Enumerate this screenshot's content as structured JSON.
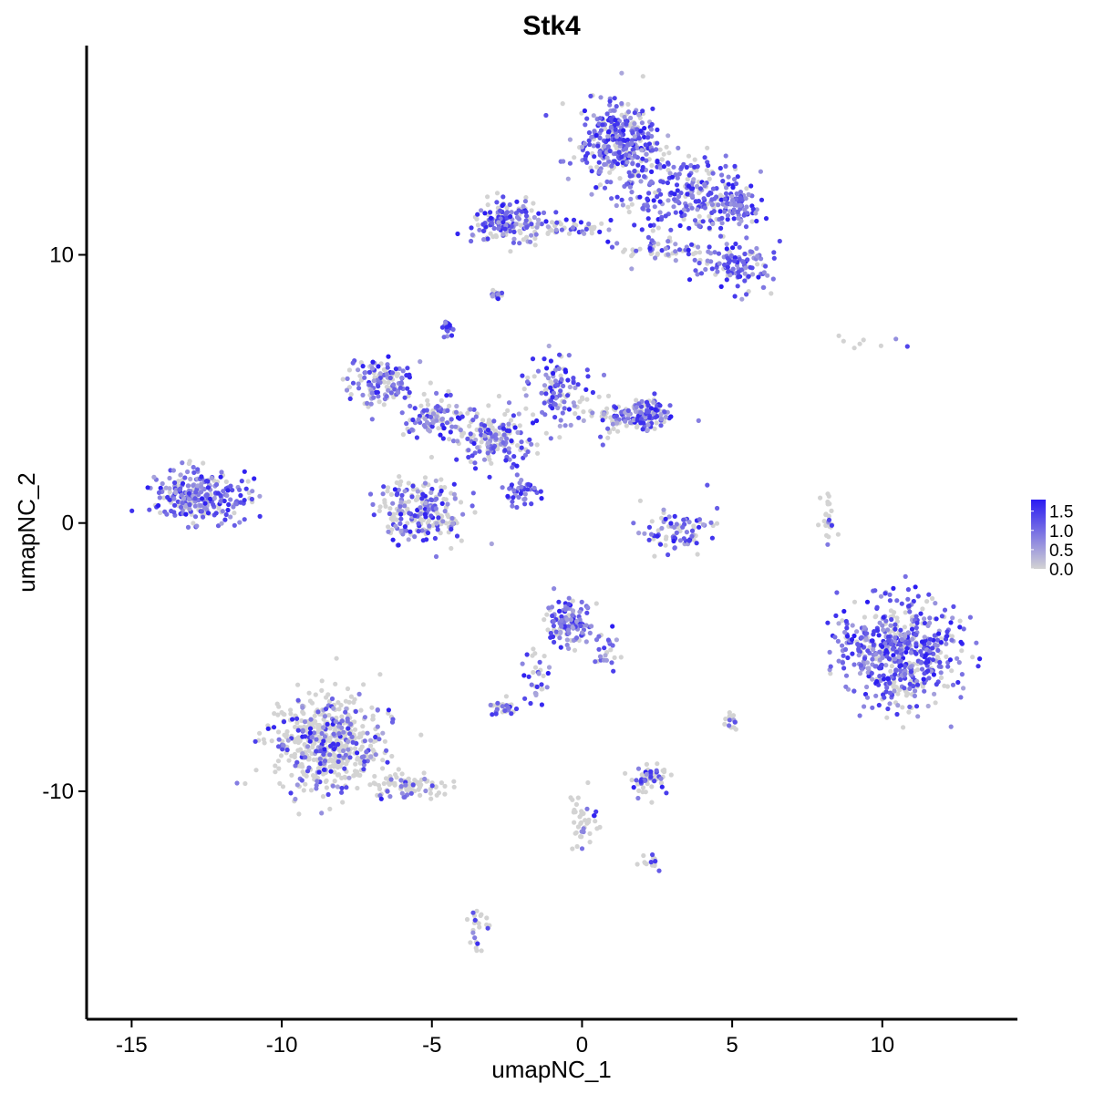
{
  "chart_data": {
    "type": "scatter",
    "title": "Stk4",
    "xlabel": "umapNC_1",
    "ylabel": "umapNC_2",
    "xlim": [
      -16.5,
      14.5
    ],
    "ylim": [
      -18.5,
      17.8
    ],
    "x_ticks": [
      -15,
      -10,
      -5,
      0,
      5,
      10
    ],
    "x_tick_labels": [
      "-15",
      "-10",
      "-5",
      "0",
      "5",
      "10"
    ],
    "y_ticks": [
      -10,
      0,
      10
    ],
    "y_tick_labels": [
      "-10",
      "0",
      "10"
    ],
    "grid": false,
    "legend": {
      "placement": "right",
      "type": "colorbar",
      "min": 0.0,
      "max": 1.8,
      "ticks": [
        0.0,
        0.5,
        1.0,
        1.5
      ],
      "tick_labels": [
        "0.0",
        "0.5",
        "1.0",
        "1.5"
      ],
      "color_low": "#d3d3d3",
      "color_high": "#2a1bf2"
    },
    "clusters": [
      {
        "name": "top-right-upper",
        "x": 1.2,
        "y": 14.2,
        "sx": 0.9,
        "sy": 1.0,
        "n": 320,
        "expr": 0.75
      },
      {
        "name": "top-right-mid",
        "x": 3.5,
        "y": 12.3,
        "sx": 1.3,
        "sy": 0.9,
        "n": 260,
        "expr": 0.8
      },
      {
        "name": "top-right-lower",
        "x": 5.0,
        "y": 9.6,
        "sx": 0.8,
        "sy": 0.6,
        "n": 120,
        "expr": 0.85
      },
      {
        "name": "top-right-extra",
        "x": 5.3,
        "y": 11.7,
        "sx": 0.4,
        "sy": 0.4,
        "n": 50,
        "expr": 1.1
      },
      {
        "name": "top-left-arm",
        "x": -2.5,
        "y": 11.2,
        "sx": 0.7,
        "sy": 0.5,
        "n": 150,
        "expr": 0.7
      },
      {
        "name": "top-bridge",
        "x": -0.5,
        "y": 11.0,
        "sx": 1.1,
        "sy": 0.2,
        "n": 55,
        "expr": 0.45
      },
      {
        "name": "top-bridge-2",
        "x": 2.5,
        "y": 10.2,
        "sx": 0.9,
        "sy": 0.3,
        "n": 50,
        "expr": 0.45
      },
      {
        "name": "small-upper",
        "x": -2.8,
        "y": 8.5,
        "sx": 0.15,
        "sy": 0.15,
        "n": 14,
        "expr": 0.7
      },
      {
        "name": "star-small-top",
        "x": -4.5,
        "y": 7.3,
        "sx": 0.12,
        "sy": 0.18,
        "n": 18,
        "expr": 1.0
      },
      {
        "name": "star-left-arm",
        "x": -6.8,
        "y": 5.2,
        "sx": 0.7,
        "sy": 0.5,
        "n": 130,
        "expr": 0.6
      },
      {
        "name": "star-upper-left",
        "x": -5.0,
        "y": 4.0,
        "sx": 0.7,
        "sy": 0.4,
        "n": 90,
        "expr": 0.55
      },
      {
        "name": "star-center",
        "x": -3.0,
        "y": 3.2,
        "sx": 0.9,
        "sy": 0.7,
        "n": 180,
        "expr": 0.55
      },
      {
        "name": "star-upper-right",
        "x": -0.8,
        "y": 5.0,
        "sx": 0.5,
        "sy": 0.8,
        "n": 110,
        "expr": 0.75
      },
      {
        "name": "star-right-arm",
        "x": 1.5,
        "y": 4.0,
        "sx": 0.9,
        "sy": 0.4,
        "n": 120,
        "expr": 0.55
      },
      {
        "name": "star-right-tip",
        "x": 2.2,
        "y": 4.1,
        "sx": 0.4,
        "sy": 0.4,
        "n": 60,
        "expr": 0.8
      },
      {
        "name": "star-lower-blob",
        "x": -5.3,
        "y": 0.5,
        "sx": 0.9,
        "sy": 0.7,
        "n": 230,
        "expr": 0.5
      },
      {
        "name": "star-diagonal-tail",
        "x": -2.0,
        "y": 1.2,
        "sx": 0.3,
        "sy": 0.3,
        "n": 40,
        "expr": 1.0
      },
      {
        "name": "left-cluster",
        "x": -12.8,
        "y": 1.0,
        "sx": 1.0,
        "sy": 0.6,
        "n": 260,
        "expr": 0.7
      },
      {
        "name": "small-arc",
        "x": 3.1,
        "y": -0.3,
        "sx": 0.7,
        "sy": 0.5,
        "n": 85,
        "expr": 0.75
      },
      {
        "name": "right-sparse-line",
        "x": 8.2,
        "y": 0.3,
        "sx": 0.15,
        "sy": 0.5,
        "n": 25,
        "expr": 0.2
      },
      {
        "name": "right-large",
        "x": 10.5,
        "y": -4.8,
        "sx": 1.2,
        "sy": 1.2,
        "n": 560,
        "expr": 0.75
      },
      {
        "name": "mid-lower-top",
        "x": -0.4,
        "y": -3.7,
        "sx": 0.5,
        "sy": 0.5,
        "n": 130,
        "expr": 0.8
      },
      {
        "name": "mid-lower-stem",
        "x": -1.5,
        "y": -5.5,
        "sx": 0.3,
        "sy": 0.6,
        "n": 30,
        "expr": 0.7
      },
      {
        "name": "mid-lower-right-stem",
        "x": 0.8,
        "y": -4.8,
        "sx": 0.3,
        "sy": 0.5,
        "n": 25,
        "expr": 0.5
      },
      {
        "name": "mid-small-left",
        "x": -2.6,
        "y": -6.9,
        "sx": 0.3,
        "sy": 0.2,
        "n": 35,
        "expr": 0.6
      },
      {
        "name": "bottom-left-large",
        "x": -8.5,
        "y": -8.2,
        "sx": 1.1,
        "sy": 1.1,
        "n": 560,
        "expr": 0.25
      },
      {
        "name": "bottom-left-tail",
        "x": -5.8,
        "y": -9.8,
        "sx": 0.8,
        "sy": 0.3,
        "n": 90,
        "expr": 0.2
      },
      {
        "name": "mid-bottom-small",
        "x": 2.3,
        "y": -9.5,
        "sx": 0.4,
        "sy": 0.4,
        "n": 55,
        "expr": 0.35
      },
      {
        "name": "bottom-center-branch",
        "x": 0.0,
        "y": -11.2,
        "sx": 0.3,
        "sy": 0.7,
        "n": 40,
        "expr": 0.2
      },
      {
        "name": "bottom-center-right",
        "x": 2.2,
        "y": -12.6,
        "sx": 0.3,
        "sy": 0.2,
        "n": 15,
        "expr": 0.2
      },
      {
        "name": "bottom-small-stem",
        "x": -3.5,
        "y": -15.0,
        "sx": 0.2,
        "sy": 0.6,
        "n": 25,
        "expr": 0.25
      },
      {
        "name": "right-tiny",
        "x": 5.0,
        "y": -7.4,
        "sx": 0.15,
        "sy": 0.25,
        "n": 15,
        "expr": 0.5
      },
      {
        "name": "far-right-top-sparse",
        "x": 9.0,
        "y": 6.8,
        "sx": 0.8,
        "sy": 0.2,
        "n": 8,
        "expr": 0.3
      }
    ]
  }
}
